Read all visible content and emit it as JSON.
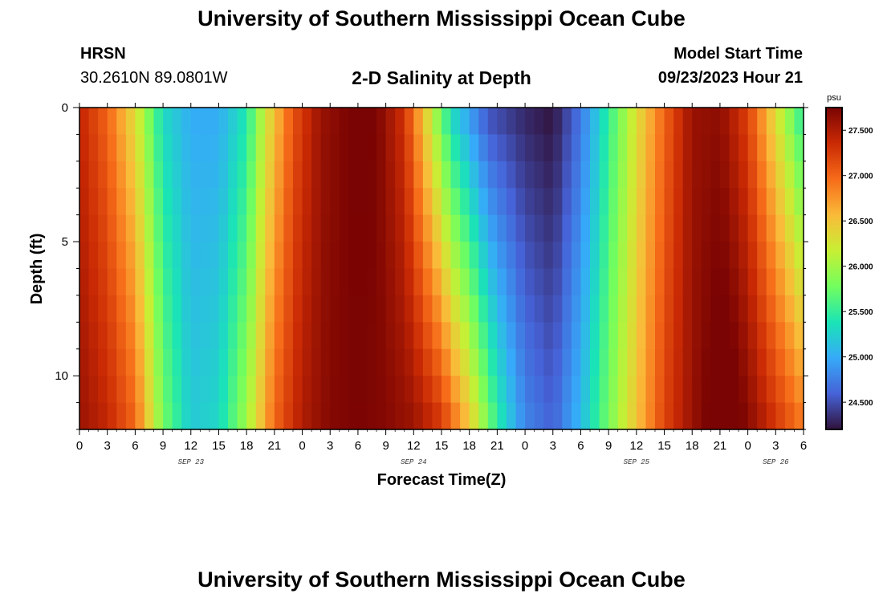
{
  "header": {
    "title": "University of Southern Mississippi Ocean Cube",
    "station_name": "HRSN",
    "coordinates": "30.2610N  89.0801W",
    "plot_title": "2-D Salinity at Depth",
    "model_start_label": "Model Start Time",
    "model_start_value": "09/23/2023 Hour 21"
  },
  "footer": {
    "title": "University of Southern Mississippi Ocean Cube"
  },
  "chart_data": {
    "type": "heatmap",
    "title": "2-D Salinity at Depth",
    "xlabel": "Forecast Time(Z)",
    "ylabel": "Depth (ft)",
    "x_tick_labels": [
      "0",
      "3",
      "6",
      "9",
      "12",
      "15",
      "18",
      "21",
      "0",
      "3",
      "6",
      "9",
      "12",
      "15",
      "18",
      "21",
      "0",
      "3",
      "6",
      "9",
      "12",
      "15",
      "18",
      "21",
      "0",
      "3",
      "6"
    ],
    "x_hours_since_sep23_00z": [
      0,
      3,
      6,
      9,
      12,
      15,
      18,
      21,
      24,
      27,
      30,
      33,
      36,
      39,
      42,
      45,
      48,
      51,
      54,
      57,
      60,
      63,
      66,
      69,
      72,
      75,
      78
    ],
    "date_labels": [
      {
        "text": "SEP 23",
        "hour": 12
      },
      {
        "text": "SEP 24",
        "hour": 36
      },
      {
        "text": "SEP 25",
        "hour": 60
      },
      {
        "text": "SEP 26",
        "hour": 75
      }
    ],
    "xlim_hours": [
      0,
      78
    ],
    "y_tick_labels": [
      "0",
      "5",
      "10"
    ],
    "y_ticks_ft": [
      0,
      5,
      10
    ],
    "ylim_ft": [
      0,
      12
    ],
    "y_inverted": true,
    "colorbar": {
      "unit": "psu",
      "range": [
        24.2,
        27.75
      ],
      "tick_labels": [
        "24.500",
        "25.000",
        "25.500",
        "26.000",
        "26.500",
        "27.000",
        "27.500"
      ],
      "tick_values": [
        24.5,
        25.0,
        25.5,
        26.0,
        26.5,
        27.0,
        27.5
      ],
      "colormap": [
        "#30123b",
        "#4662d7",
        "#36aaf9",
        "#1ae4b6",
        "#72fe5e",
        "#c8ef34",
        "#faba39",
        "#f66b19",
        "#ca2a04",
        "#7a0403"
      ]
    },
    "surface_salinity_psu_by_hour": [
      [
        0,
        27.4
      ],
      [
        3,
        27.0
      ],
      [
        6,
        26.3
      ],
      [
        9,
        25.3
      ],
      [
        12,
        25.0
      ],
      [
        15,
        25.0
      ],
      [
        18,
        25.4
      ],
      [
        20,
        26.2
      ],
      [
        23,
        27.1
      ],
      [
        26,
        27.6
      ],
      [
        29,
        27.75
      ],
      [
        32,
        27.75
      ],
      [
        35,
        27.3
      ],
      [
        37,
        26.5
      ],
      [
        40,
        25.3
      ],
      [
        44,
        24.5
      ],
      [
        48,
        24.3
      ],
      [
        51,
        24.2
      ],
      [
        54,
        24.7
      ],
      [
        57,
        25.5
      ],
      [
        60,
        26.3
      ],
      [
        63,
        27.0
      ],
      [
        66,
        27.6
      ],
      [
        69,
        27.65
      ],
      [
        72,
        27.2
      ],
      [
        74,
        26.6
      ],
      [
        76,
        26.0
      ],
      [
        78,
        25.4
      ]
    ],
    "bottom_salinity_psu_by_hour": [
      [
        0,
        27.6
      ],
      [
        3,
        27.4
      ],
      [
        6,
        27.0
      ],
      [
        9,
        25.8
      ],
      [
        12,
        25.2
      ],
      [
        15,
        25.3
      ],
      [
        18,
        26.0
      ],
      [
        21,
        27.0
      ],
      [
        24,
        27.5
      ],
      [
        27,
        27.7
      ],
      [
        30,
        27.75
      ],
      [
        33,
        27.7
      ],
      [
        36,
        27.6
      ],
      [
        39,
        27.3
      ],
      [
        42,
        26.5
      ],
      [
        45,
        25.5
      ],
      [
        48,
        24.8
      ],
      [
        51,
        24.6
      ],
      [
        54,
        25.1
      ],
      [
        57,
        25.8
      ],
      [
        60,
        26.5
      ],
      [
        63,
        27.2
      ],
      [
        66,
        27.6
      ],
      [
        68,
        27.8
      ],
      [
        70,
        27.9
      ],
      [
        72,
        27.7
      ],
      [
        75,
        27.3
      ],
      [
        78,
        26.9
      ]
    ]
  }
}
